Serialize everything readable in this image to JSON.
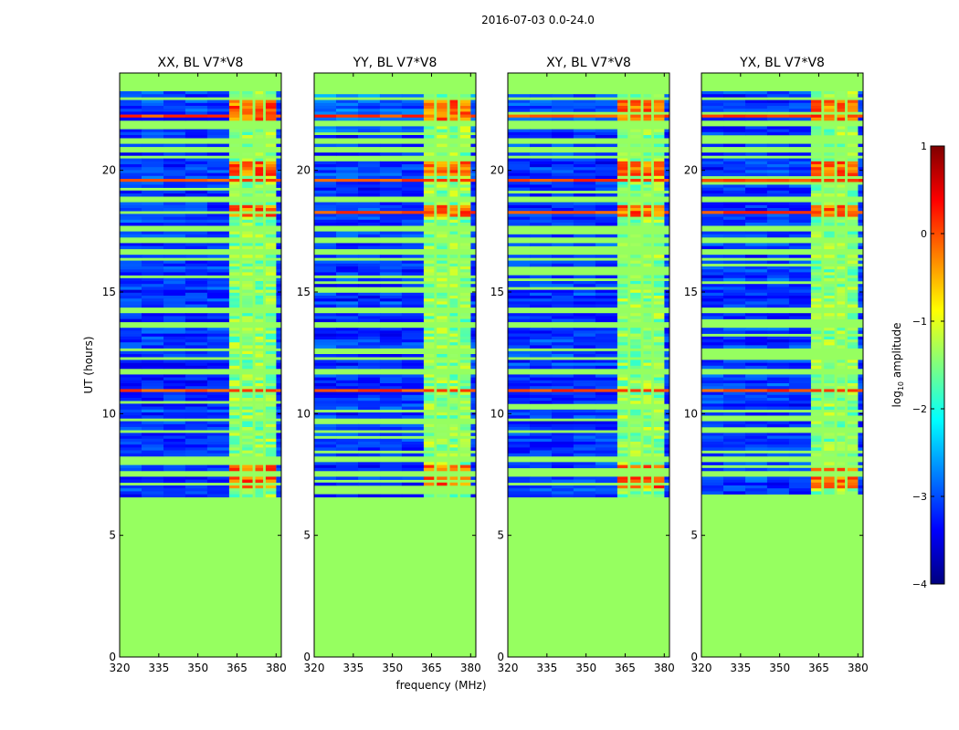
{
  "figure": {
    "suptitle": "2016-07-03 0.0-24.0"
  },
  "chart_data": {
    "type": "heatmap",
    "suptitle": "2016-07-03 0.0-24.0",
    "xlabel": "frequency (MHz)",
    "ylabel": "UT (hours)",
    "xlim": [
      320,
      382
    ],
    "ylim": [
      0,
      24
    ],
    "xticks": [
      320,
      335,
      350,
      365,
      380
    ],
    "yticks": [
      0,
      5,
      10,
      15,
      20
    ],
    "panels": [
      {
        "title": "XX, BL V7*V8"
      },
      {
        "title": "YY, BL V7*V8"
      },
      {
        "title": "XY, BL V7*V8"
      },
      {
        "title": "YX, BL V7*V8"
      }
    ],
    "colorbar": {
      "label": "log10 amplitude",
      "label_base": "log",
      "label_sub": "10",
      "label_rest": " amplitude",
      "min": -4,
      "max": 1,
      "ticks": [
        1,
        0,
        -1,
        -2,
        -3,
        -4
      ],
      "tick_labels": [
        "1",
        "0",
        "−1",
        "−2",
        "−3",
        "−4"
      ],
      "colormap": "jet",
      "colors": [
        "#00007f",
        "#0000ff",
        "#007fff",
        "#00ffff",
        "#7fff7f",
        "#ffff00",
        "#ff7f00",
        "#ff0000",
        "#7f0000"
      ]
    },
    "background_value": -1.4,
    "background_color": "#96ff60",
    "data_start_ut": 6.65,
    "data_end_ut": 23.25,
    "rfi_band_mhz": [
      362,
      380
    ],
    "rfi_subbands_mhz": [
      [
        362,
        366
      ],
      [
        367,
        371
      ],
      [
        372,
        375
      ],
      [
        376,
        380
      ]
    ],
    "high_rows_ut": [
      11.0,
      19.6,
      20.6,
      22.3,
      7.7,
      18.3
    ],
    "flagged_rows_ut": [
      23.0,
      22.0,
      21.3,
      20.9,
      20.6,
      18.9,
      17.7,
      17.2,
      16.7,
      16.4,
      14.3,
      13.7,
      12.7,
      12.3,
      11.8,
      9.8,
      9.3,
      8.2,
      7.6
    ]
  }
}
